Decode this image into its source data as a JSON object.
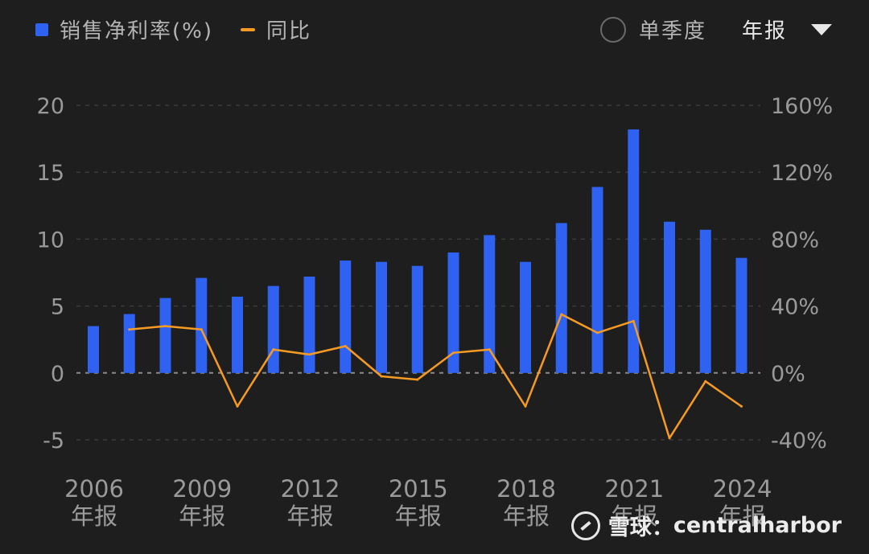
{
  "legend": {
    "bar_label": "销售净利率(%)",
    "line_label": "同比"
  },
  "controls": {
    "quarter_label": "单季度",
    "period_select": "年报"
  },
  "watermark": {
    "brand": "雪球",
    "separator": "：",
    "user": "centralharbor"
  },
  "colors": {
    "bar": "#2f62f0",
    "line": "#f59a23",
    "background": "#1e1e1e"
  },
  "icons": {
    "radio": "radio-circle-icon",
    "dropdown": "caret-down-icon",
    "logo": "snowball-logo-icon"
  },
  "chart_data": {
    "type": "bar+line",
    "categories": [
      "2006年报",
      "2007年报",
      "2008年报",
      "2009年报",
      "2010年报",
      "2011年报",
      "2012年报",
      "2013年报",
      "2014年报",
      "2015年报",
      "2016年报",
      "2017年报",
      "2018年报",
      "2019年报",
      "2020年报",
      "2021年报",
      "2022年报",
      "2023年报",
      "2024年报"
    ],
    "x_tick_labels": [
      {
        "year": "2006",
        "suffix": "年报",
        "index": 0
      },
      {
        "year": "2009",
        "suffix": "年报",
        "index": 3
      },
      {
        "year": "2012",
        "suffix": "年报",
        "index": 6
      },
      {
        "year": "2015",
        "suffix": "年报",
        "index": 9
      },
      {
        "year": "2018",
        "suffix": "年报",
        "index": 12
      },
      {
        "year": "2021",
        "suffix": "年报",
        "index": 15
      },
      {
        "year": "2024",
        "suffix": "年报",
        "index": 18
      }
    ],
    "series": [
      {
        "name": "销售净利率(%)",
        "type": "bar",
        "axis": "left",
        "values": [
          3.5,
          4.4,
          5.6,
          7.1,
          5.7,
          6.5,
          7.2,
          8.4,
          8.3,
          8.0,
          9.0,
          10.3,
          8.3,
          11.2,
          13.9,
          18.2,
          11.3,
          10.7,
          8.6
        ]
      },
      {
        "name": "同比",
        "type": "line",
        "axis": "right",
        "values": [
          null,
          26,
          28,
          26,
          -20,
          14,
          11,
          16,
          -2,
          -4,
          12,
          14,
          -20,
          35,
          24,
          31,
          -39,
          -5,
          -20
        ]
      }
    ],
    "y_left": {
      "min": -5,
      "max": 20,
      "ticks": [
        "-5",
        "0",
        "5",
        "10",
        "15",
        "20"
      ]
    },
    "y_right": {
      "min": -40,
      "max": 160,
      "ticks": [
        "-40%",
        "0%",
        "40%",
        "80%",
        "120%",
        "160%"
      ]
    },
    "grid": "dashed-horizontal"
  }
}
